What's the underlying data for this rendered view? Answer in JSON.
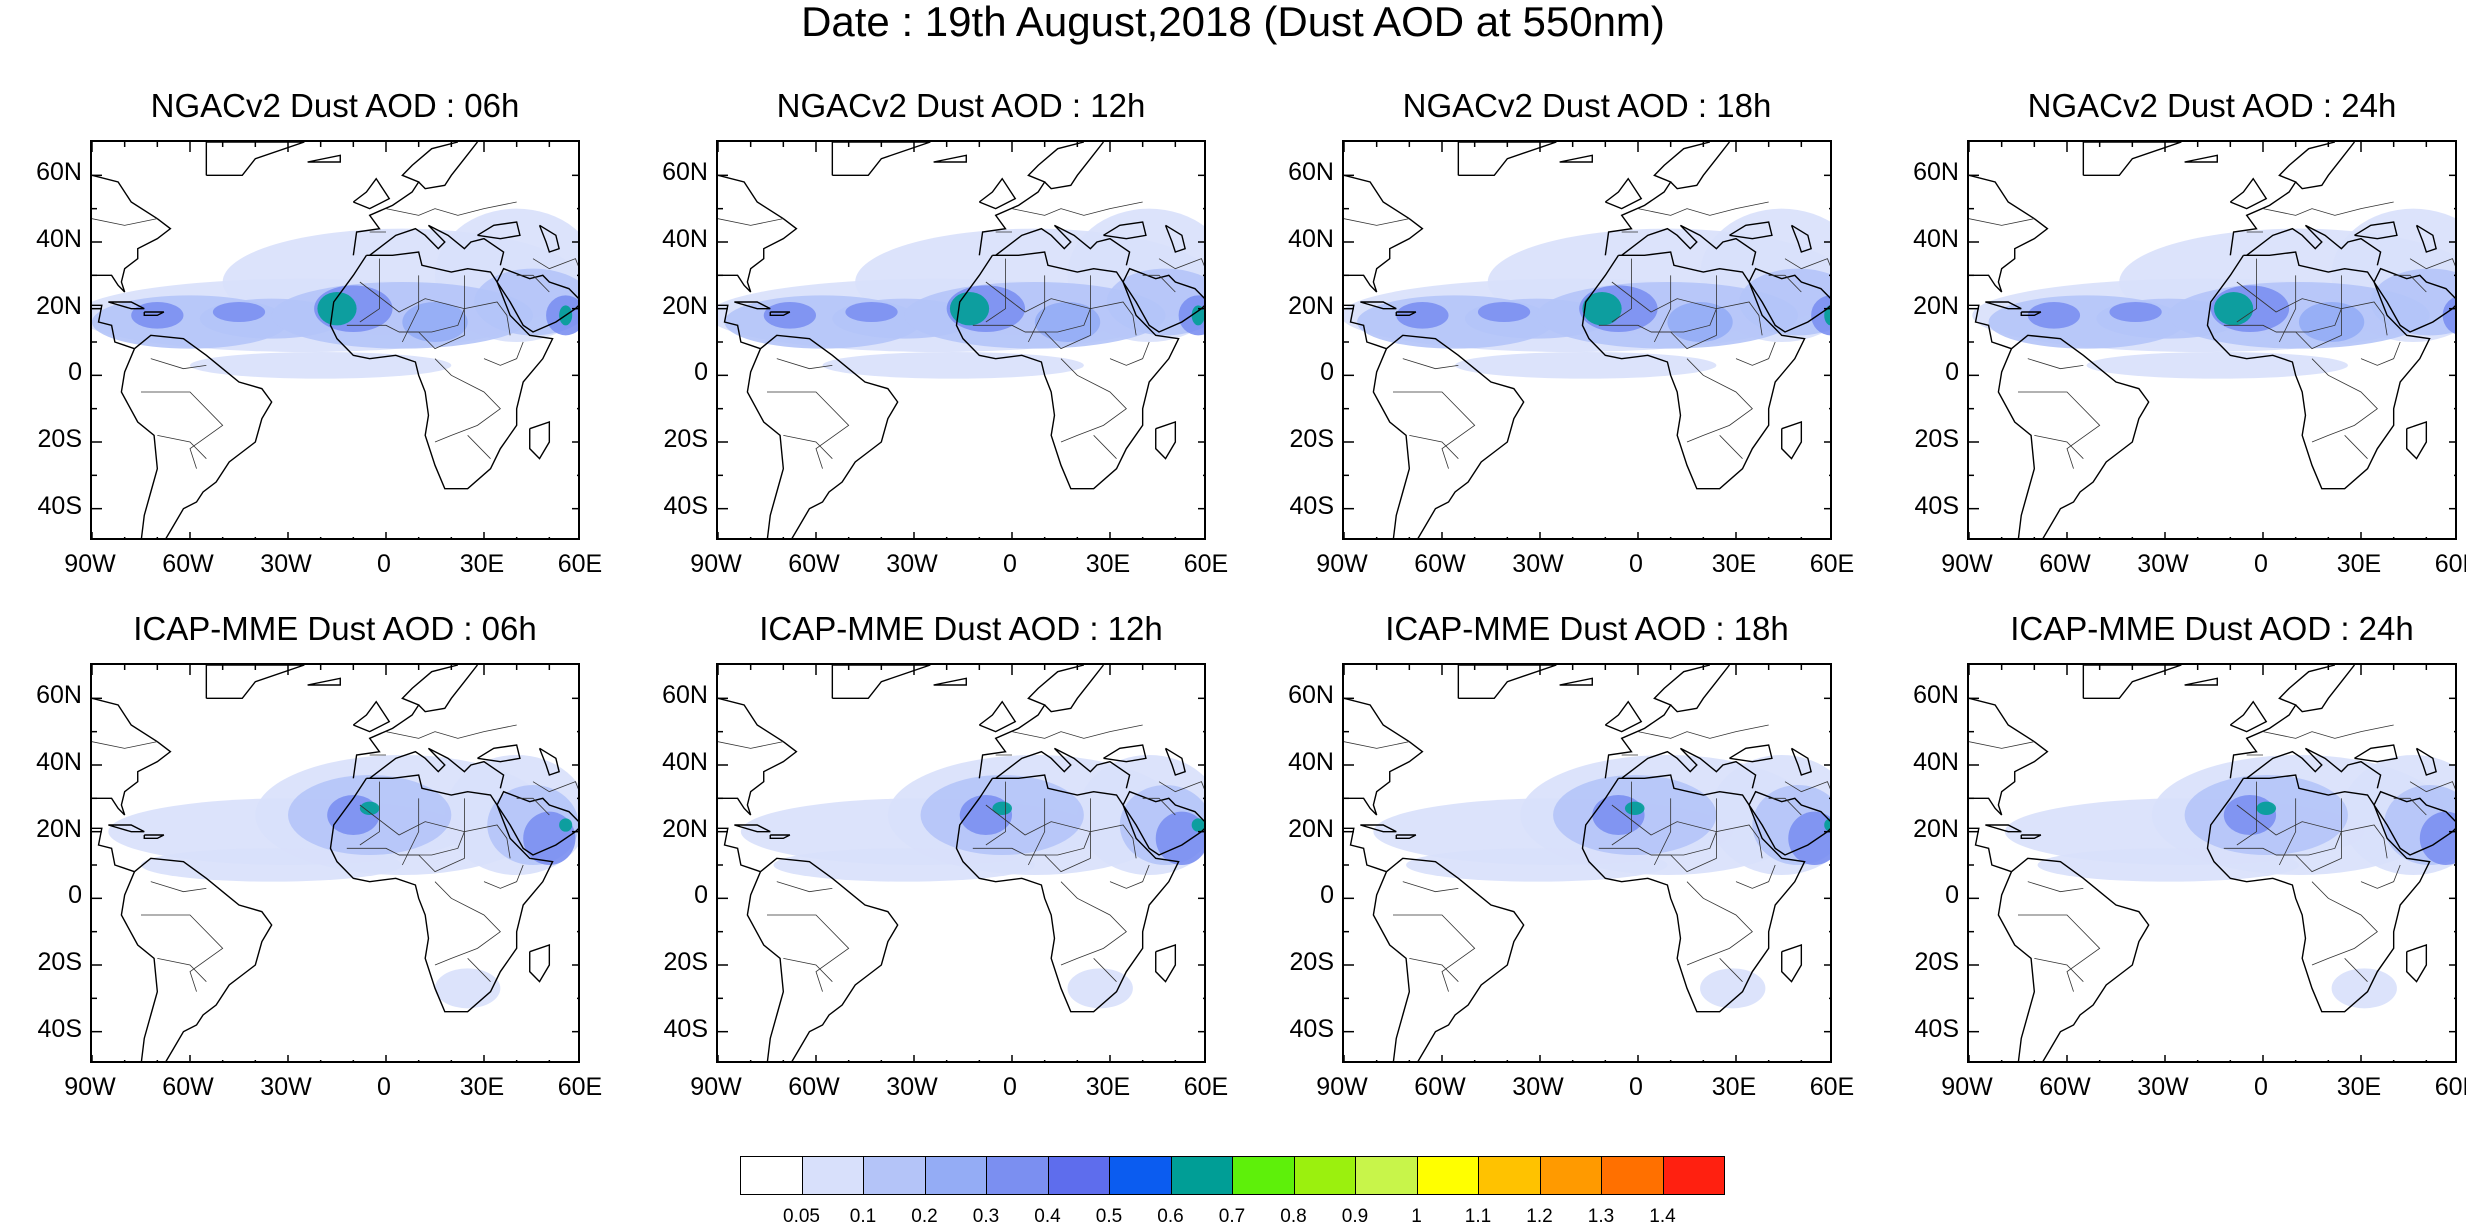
{
  "title": "Date : 19th August,2018 (Dust AOD at 550nm)",
  "lat_labels": [
    "60N",
    "40N",
    "20N",
    "0",
    "20S",
    "40S"
  ],
  "lon_labels": [
    "90W",
    "60W",
    "30W",
    "0",
    "30E",
    "60E"
  ],
  "map_extent": {
    "lon": [
      -90,
      60
    ],
    "lat": [
      -50,
      70
    ]
  },
  "panels": [
    {
      "title": "NGACv2 Dust AOD : 06h",
      "model": "NGACv2",
      "hour": 6
    },
    {
      "title": "NGACv2 Dust AOD : 12h",
      "model": "NGACv2",
      "hour": 12
    },
    {
      "title": "NGACv2 Dust AOD : 18h",
      "model": "NGACv2",
      "hour": 18
    },
    {
      "title": "NGACv2 Dust AOD : 24h",
      "model": "NGACv2",
      "hour": 24
    },
    {
      "title": "ICAP-MME Dust AOD : 06h",
      "model": "ICAP-MME",
      "hour": 6
    },
    {
      "title": "ICAP-MME Dust AOD : 12h",
      "model": "ICAP-MME",
      "hour": 12
    },
    {
      "title": "ICAP-MME Dust AOD : 18h",
      "model": "ICAP-MME",
      "hour": 18
    },
    {
      "title": "ICAP-MME Dust AOD : 24h",
      "model": "ICAP-MME",
      "hour": 24
    }
  ],
  "colorbar": {
    "labels": [
      "0.05",
      "0.1",
      "0.2",
      "0.3",
      "0.4",
      "0.5",
      "0.6",
      "0.7",
      "0.8",
      "0.9",
      "1",
      "1.1",
      "1.2",
      "1.3",
      "1.4"
    ],
    "colors": [
      "#ffffff",
      "#d8e0fb",
      "#b4c4f8",
      "#94acf5",
      "#7b8ff1",
      "#5e6ded",
      "#0b5cf0",
      "#009e96",
      "#5ef00a",
      "#9bf00e",
      "#c8f54a",
      "#ffff00",
      "#ffc200",
      "#ff9a00",
      "#ff7000",
      "#ff2010"
    ]
  }
}
